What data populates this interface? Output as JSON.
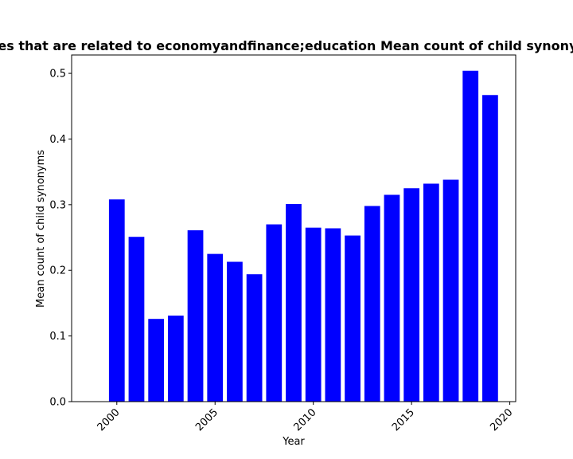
{
  "chart_data": {
    "type": "bar",
    "title": "Share of articles that are related to economyandfinance;education Mean count of child synonyms in prior year",
    "xlabel": "Year",
    "ylabel": "Mean count of child synonyms",
    "xlim": [
      1997.7,
      2020.3
    ],
    "ylim": [
      0,
      0.528
    ],
    "xticks": [
      2000,
      2005,
      2010,
      2015,
      2020
    ],
    "yticks": [
      0.0,
      0.1,
      0.2,
      0.3,
      0.4,
      0.5
    ],
    "ytick_labels": [
      "0.0",
      "0.1",
      "0.2",
      "0.3",
      "0.4",
      "0.5"
    ],
    "bar_color": "#0000ff",
    "x": [
      2000,
      2001,
      2002,
      2003,
      2004,
      2005,
      2006,
      2007,
      2008,
      2009,
      2010,
      2011,
      2012,
      2013,
      2014,
      2015,
      2016,
      2017,
      2018,
      2019
    ],
    "values": [
      0.308,
      0.251,
      0.126,
      0.131,
      0.261,
      0.225,
      0.213,
      0.194,
      0.27,
      0.301,
      0.265,
      0.264,
      0.253,
      0.298,
      0.315,
      0.325,
      0.332,
      0.338,
      0.504,
      0.467
    ],
    "grid": false,
    "legend": "none"
  }
}
